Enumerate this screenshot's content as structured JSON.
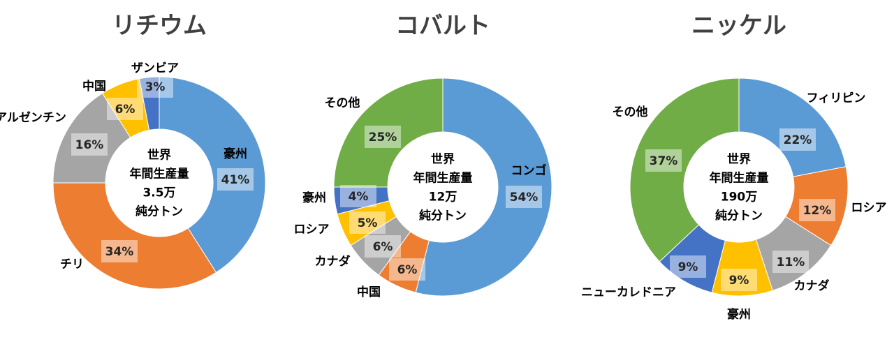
{
  "chart_data": [
    {
      "type": "pie",
      "title": "リチウム",
      "center_text": [
        "世界",
        "年間生産量",
        "3.5万",
        "純分トン"
      ],
      "categories": [
        "豪州",
        "チリ",
        "アルゼンチン",
        "中国",
        "ザンビア"
      ],
      "values": [
        41,
        34,
        16,
        6,
        3
      ],
      "labels": [
        "41%",
        "34%",
        "16%",
        "6%",
        "3%"
      ],
      "colors": [
        "#5b9bd5",
        "#ed7d31",
        "#a5a5a5",
        "#ffc000",
        "#4472c4"
      ]
    },
    {
      "type": "pie",
      "title": "コバルト",
      "center_text": [
        "世界",
        "年間生産量",
        "12万",
        "純分トン"
      ],
      "categories": [
        "コンゴ",
        "中国",
        "カナダ",
        "ロシア",
        "豪州",
        "その他"
      ],
      "values": [
        54,
        6,
        6,
        5,
        4,
        25
      ],
      "labels": [
        "54%",
        "6%",
        "6%",
        "5%",
        "4%",
        "25%"
      ],
      "colors": [
        "#5b9bd5",
        "#ed7d31",
        "#a5a5a5",
        "#ffc000",
        "#4472c4",
        "#70ad47"
      ]
    },
    {
      "type": "pie",
      "title": "ニッケル",
      "center_text": [
        "世界",
        "年間生産量",
        "190万",
        "純分トン"
      ],
      "categories": [
        "フィリピン",
        "ロシア",
        "カナダ",
        "豪州",
        "ニューカレドニア",
        "その他"
      ],
      "values": [
        22,
        12,
        11,
        9,
        9,
        37
      ],
      "labels": [
        "22%",
        "12%",
        "11%",
        "9%",
        "9%",
        "37%"
      ],
      "colors": [
        "#5b9bd5",
        "#ed7d31",
        "#a5a5a5",
        "#ffc000",
        "#4472c4",
        "#70ad47"
      ]
    }
  ]
}
